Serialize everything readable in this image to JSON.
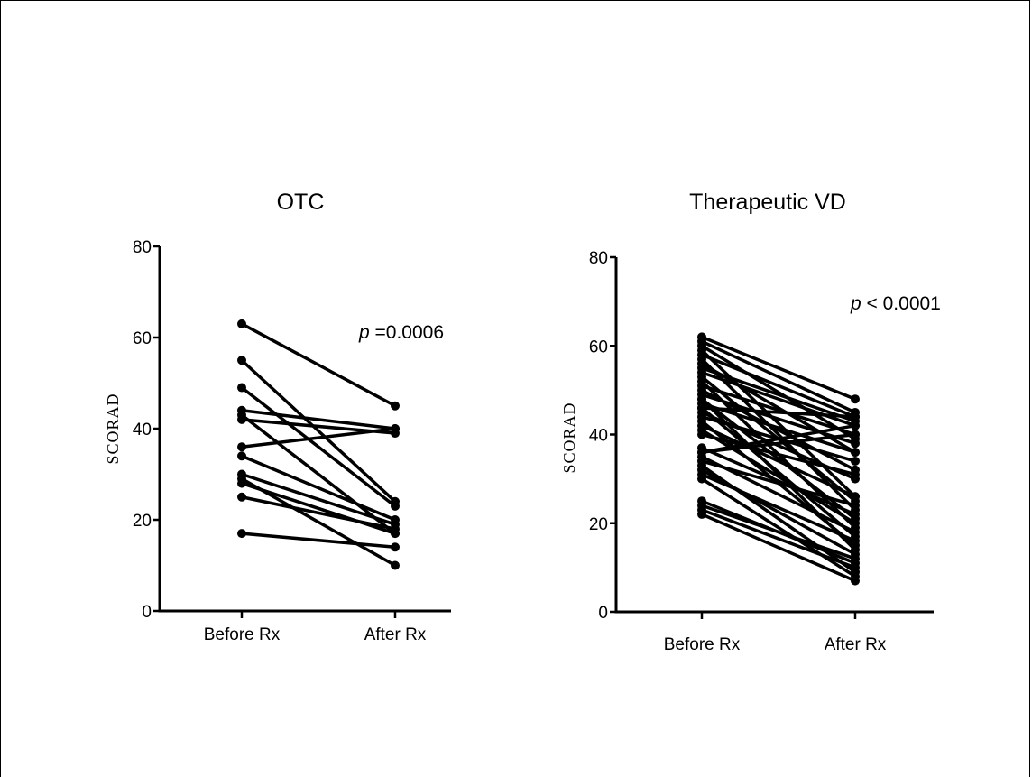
{
  "chart_data": [
    {
      "type": "line",
      "title": "OTC",
      "xlabel": "",
      "ylabel": "SCORAD",
      "categories": [
        "Before Rx",
        "After Rx"
      ],
      "ylim": [
        0,
        80
      ],
      "yticks": [
        "0",
        "20",
        "40",
        "60",
        "80"
      ],
      "annotation": {
        "italic": "p",
        "text": " =0.0006"
      },
      "pairs": [
        [
          63,
          45
        ],
        [
          55,
          24
        ],
        [
          49,
          23
        ],
        [
          44,
          40
        ],
        [
          43,
          17
        ],
        [
          42,
          39
        ],
        [
          36,
          40
        ],
        [
          34,
          20
        ],
        [
          30,
          19
        ],
        [
          28,
          17
        ],
        [
          25,
          18
        ],
        [
          29,
          10
        ],
        [
          17,
          14
        ]
      ]
    },
    {
      "type": "line",
      "title": "Therapeutic VD",
      "xlabel": "",
      "ylabel": "SCORAD",
      "categories": [
        "Before Rx",
        "After Rx"
      ],
      "ylim": [
        0,
        80
      ],
      "yticks": [
        "0",
        "20",
        "40",
        "60",
        "80"
      ],
      "annotation": {
        "italic": "p",
        "text": " < 0.0001"
      },
      "pairs": [
        [
          62,
          48
        ],
        [
          61,
          45
        ],
        [
          60,
          39
        ],
        [
          59,
          26
        ],
        [
          58,
          44
        ],
        [
          57,
          23
        ],
        [
          56,
          36
        ],
        [
          55,
          43
        ],
        [
          54,
          42
        ],
        [
          53,
          25
        ],
        [
          52,
          19
        ],
        [
          51,
          40
        ],
        [
          50,
          32
        ],
        [
          49,
          38
        ],
        [
          48,
          14
        ],
        [
          47,
          36
        ],
        [
          46,
          17
        ],
        [
          46,
          44
        ],
        [
          45,
          30
        ],
        [
          44,
          34
        ],
        [
          43,
          15
        ],
        [
          42,
          26
        ],
        [
          41,
          20
        ],
        [
          40,
          31
        ],
        [
          37,
          22
        ],
        [
          36,
          40
        ],
        [
          35,
          18
        ],
        [
          34,
          24
        ],
        [
          33,
          9
        ],
        [
          32,
          13
        ],
        [
          31,
          16
        ],
        [
          30,
          8
        ],
        [
          25,
          11
        ],
        [
          24,
          12
        ],
        [
          23,
          10
        ],
        [
          22,
          7
        ],
        [
          36,
          42
        ],
        [
          48,
          21
        ]
      ]
    }
  ]
}
